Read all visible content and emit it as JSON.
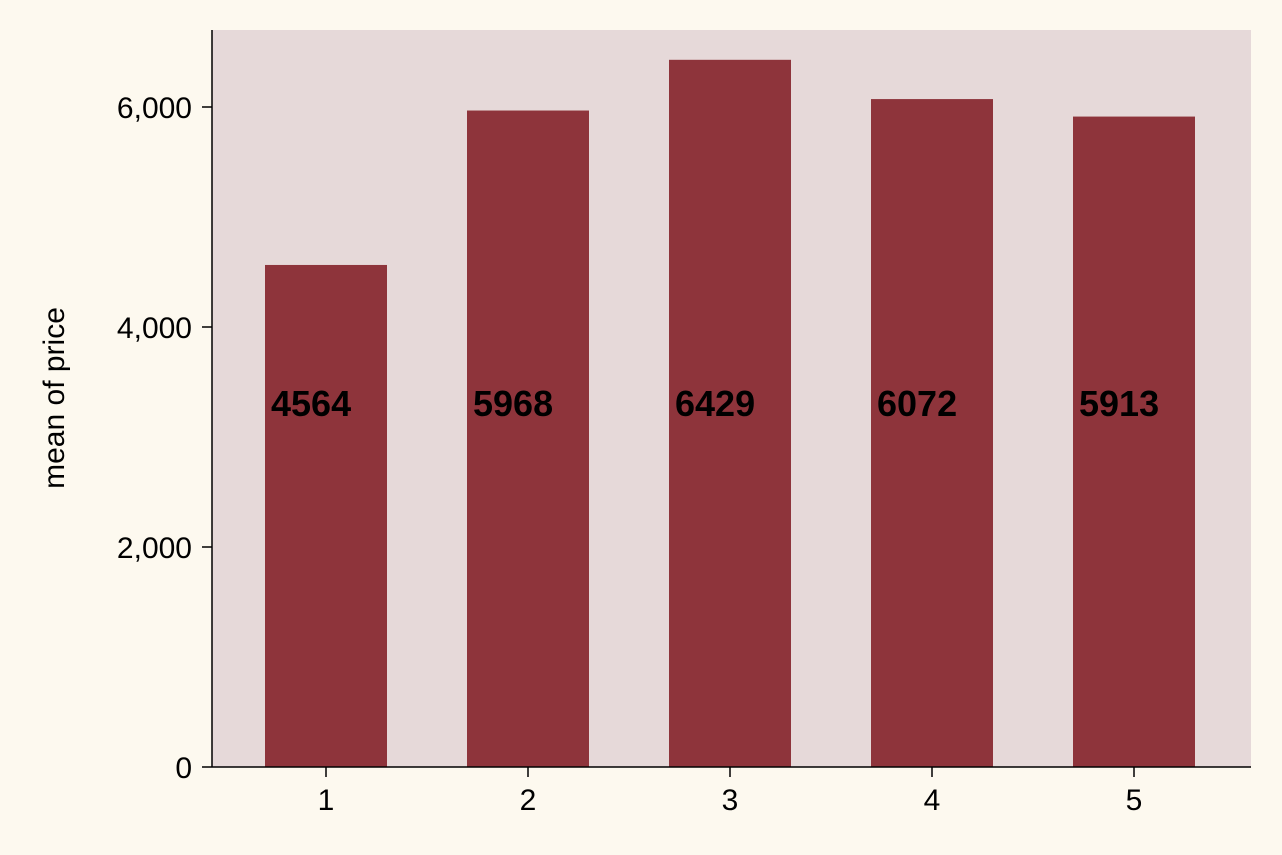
{
  "chart_data": {
    "type": "bar",
    "categories": [
      "1",
      "2",
      "3",
      "4",
      "5"
    ],
    "values": [
      4564,
      5968,
      6429,
      6072,
      5913
    ],
    "value_labels": [
      "4564",
      "5968",
      "6429",
      "6072",
      "5913"
    ],
    "ylabel": "mean of price",
    "ylim": [
      0,
      6700
    ],
    "yticks": [
      0,
      2000,
      4000,
      6000
    ],
    "ytick_labels": [
      "0",
      "2,000",
      "4,000",
      "6,000"
    ],
    "grid": false,
    "legend": "none",
    "colors": {
      "page_background": "#fdf9ef",
      "plot_background": "#e6d9d9",
      "bar": "#8e343b",
      "axis": "#000000"
    }
  }
}
